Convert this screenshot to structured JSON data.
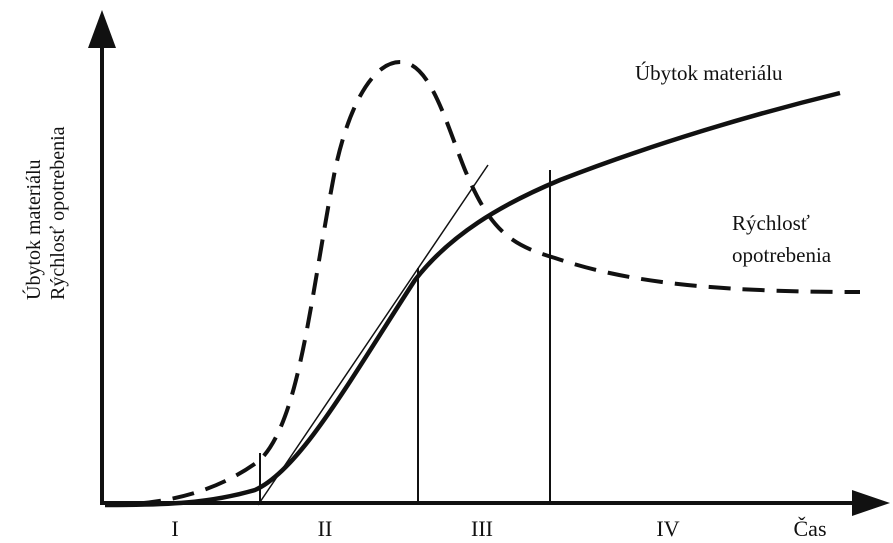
{
  "axes": {
    "y_label": [
      "Úbytok materiálu",
      "Rýchlosť opotrebenia"
    ],
    "x_label": "Čas"
  },
  "stages": [
    "I",
    "II",
    "III",
    "IV"
  ],
  "curves": {
    "wear": "Úbytok materiálu",
    "rate": [
      "Rýchlosť",
      "opotrebenia"
    ]
  }
}
